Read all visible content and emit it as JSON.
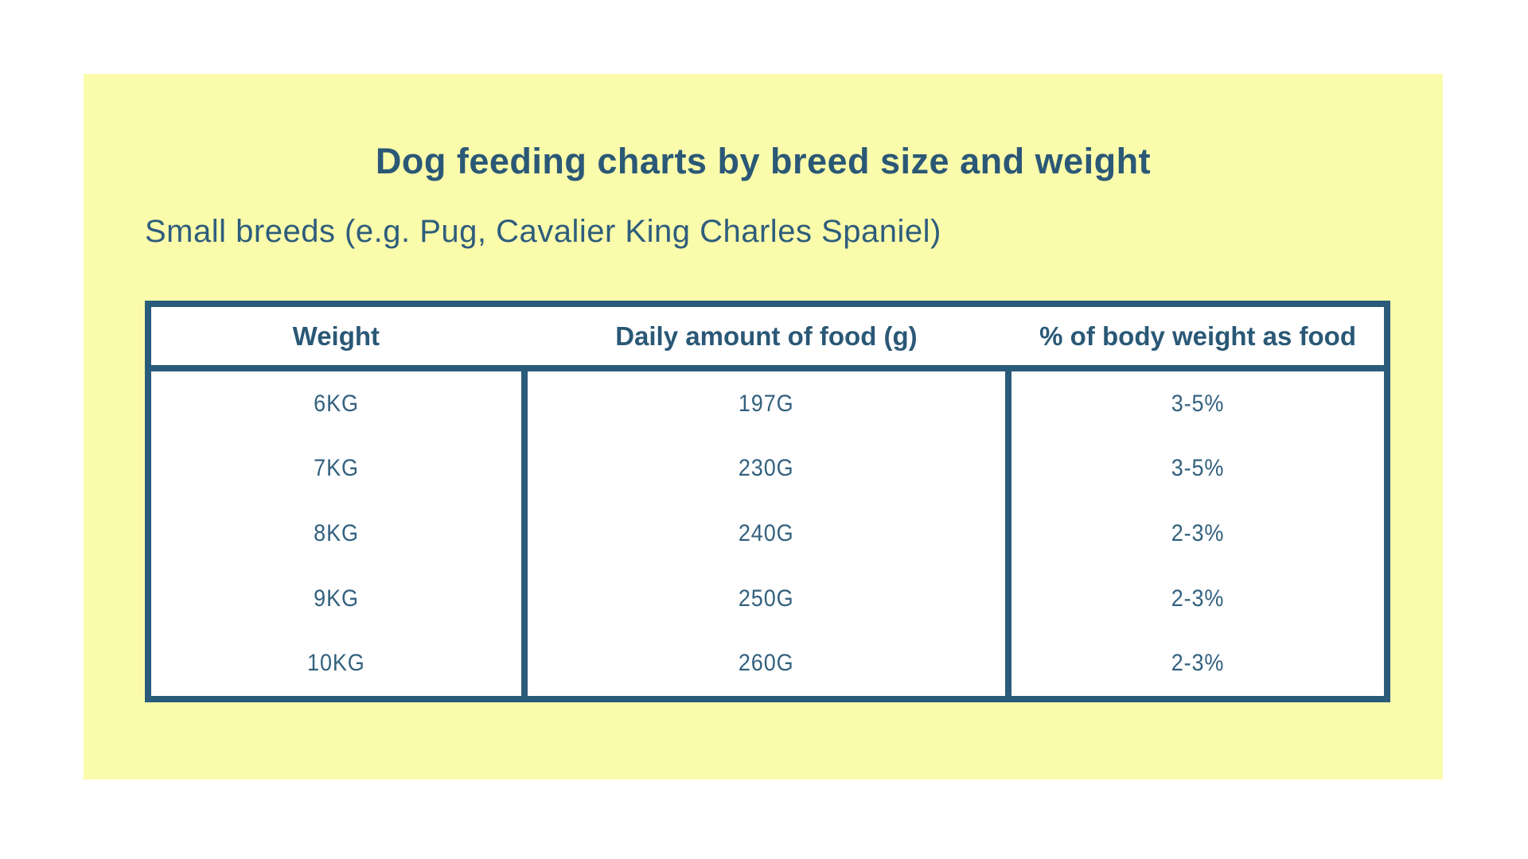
{
  "colors": {
    "page_background": "#ffffff",
    "card_background": "#FAFBAB",
    "accent_teal": "#2B5B7B",
    "table_background": "#ffffff"
  },
  "header": {
    "title": "Dog feeding charts by breed size and weight",
    "subtitle": "Small breeds (e.g. Pug, Cavalier King Charles Spaniel)"
  },
  "chart_data": {
    "type": "table",
    "title": "Dog feeding charts by breed size and weight",
    "subtitle": "Small breeds (e.g. Pug, Cavalier King Charles Spaniel)",
    "columns": [
      "Weight",
      "Daily amount of food (g)",
      "% of body weight as food"
    ],
    "rows": [
      [
        "6KG",
        "197G",
        "3-5%"
      ],
      [
        "7KG",
        "230G",
        "3-5%"
      ],
      [
        "8KG",
        "240G",
        "2-3%"
      ],
      [
        "9KG",
        "250G",
        "2-3%"
      ],
      [
        "10KG",
        "260G",
        "2-3%"
      ]
    ],
    "layout": {
      "grid": "off",
      "header_row_divider": true,
      "column_dividers_body_only": true
    }
  }
}
